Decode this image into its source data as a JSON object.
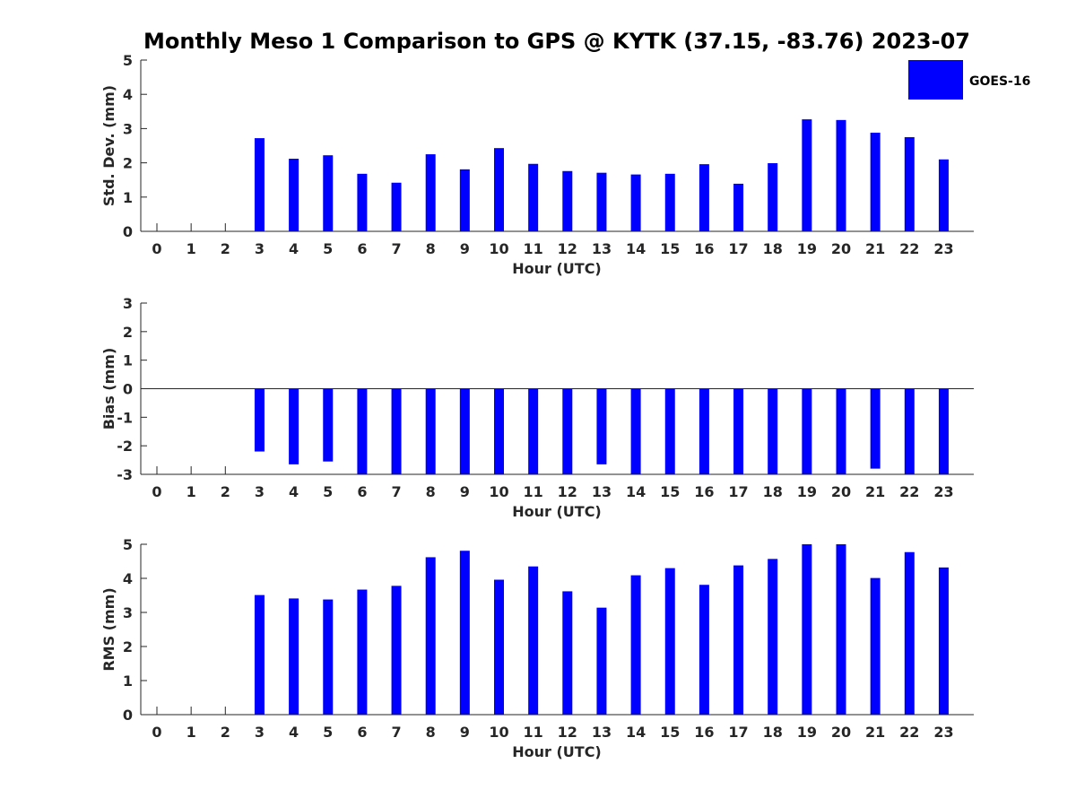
{
  "chart_data": {
    "title": "Monthly Meso 1 Comparison to GPS @ KYTK (37.15, -83.76) 2023-07",
    "type": "bar",
    "bar_color": "#0000ff",
    "legend": {
      "label": "GOES-16",
      "placement": "top-right"
    },
    "panels": [
      {
        "id": "std",
        "ylabel": "Std. Dev. (mm)",
        "xlabel": "Hour (UTC)",
        "ylim": [
          0,
          5
        ],
        "yticks": [
          0,
          1,
          2,
          3,
          4,
          5
        ],
        "categories": [
          0,
          1,
          2,
          3,
          4,
          5,
          6,
          7,
          8,
          9,
          10,
          11,
          12,
          13,
          14,
          15,
          16,
          17,
          18,
          19,
          20,
          21,
          22,
          23
        ],
        "values": [
          null,
          null,
          null,
          2.72,
          2.12,
          2.22,
          1.68,
          1.42,
          2.25,
          1.81,
          2.43,
          1.97,
          1.76,
          1.71,
          1.66,
          1.68,
          1.96,
          1.39,
          1.99,
          3.27,
          3.25,
          2.88,
          2.75,
          2.1
        ]
      },
      {
        "id": "bias",
        "ylabel": "Bias (mm)",
        "xlabel": "Hour (UTC)",
        "ylim": [
          -3,
          3
        ],
        "yticks": [
          -3,
          -2,
          -1,
          0,
          1,
          2,
          3
        ],
        "zero_line": true,
        "categories": [
          0,
          1,
          2,
          3,
          4,
          5,
          6,
          7,
          8,
          9,
          10,
          11,
          12,
          13,
          14,
          15,
          16,
          17,
          18,
          19,
          20,
          21,
          22,
          23
        ],
        "values": [
          null,
          null,
          null,
          -2.2,
          -2.65,
          -2.55,
          -3.0,
          -3.0,
          -3.0,
          -3.0,
          -3.0,
          -3.0,
          -3.0,
          -2.65,
          -3.0,
          -3.0,
          -3.0,
          -3.0,
          -3.0,
          -3.0,
          -3.0,
          -2.8,
          -3.0,
          -3.0
        ]
      },
      {
        "id": "rms",
        "ylabel": "RMS (mm)",
        "xlabel": "Hour (UTC)",
        "ylim": [
          0,
          5
        ],
        "yticks": [
          0,
          1,
          2,
          3,
          4,
          5
        ],
        "categories": [
          0,
          1,
          2,
          3,
          4,
          5,
          6,
          7,
          8,
          9,
          10,
          11,
          12,
          13,
          14,
          15,
          16,
          17,
          18,
          19,
          20,
          21,
          22,
          23
        ],
        "values": [
          null,
          null,
          null,
          3.51,
          3.41,
          3.38,
          3.67,
          3.78,
          4.62,
          4.81,
          3.96,
          4.35,
          3.62,
          3.14,
          4.09,
          4.3,
          3.81,
          4.38,
          4.57,
          5.0,
          5.0,
          4.01,
          4.77,
          4.32
        ]
      }
    ]
  }
}
